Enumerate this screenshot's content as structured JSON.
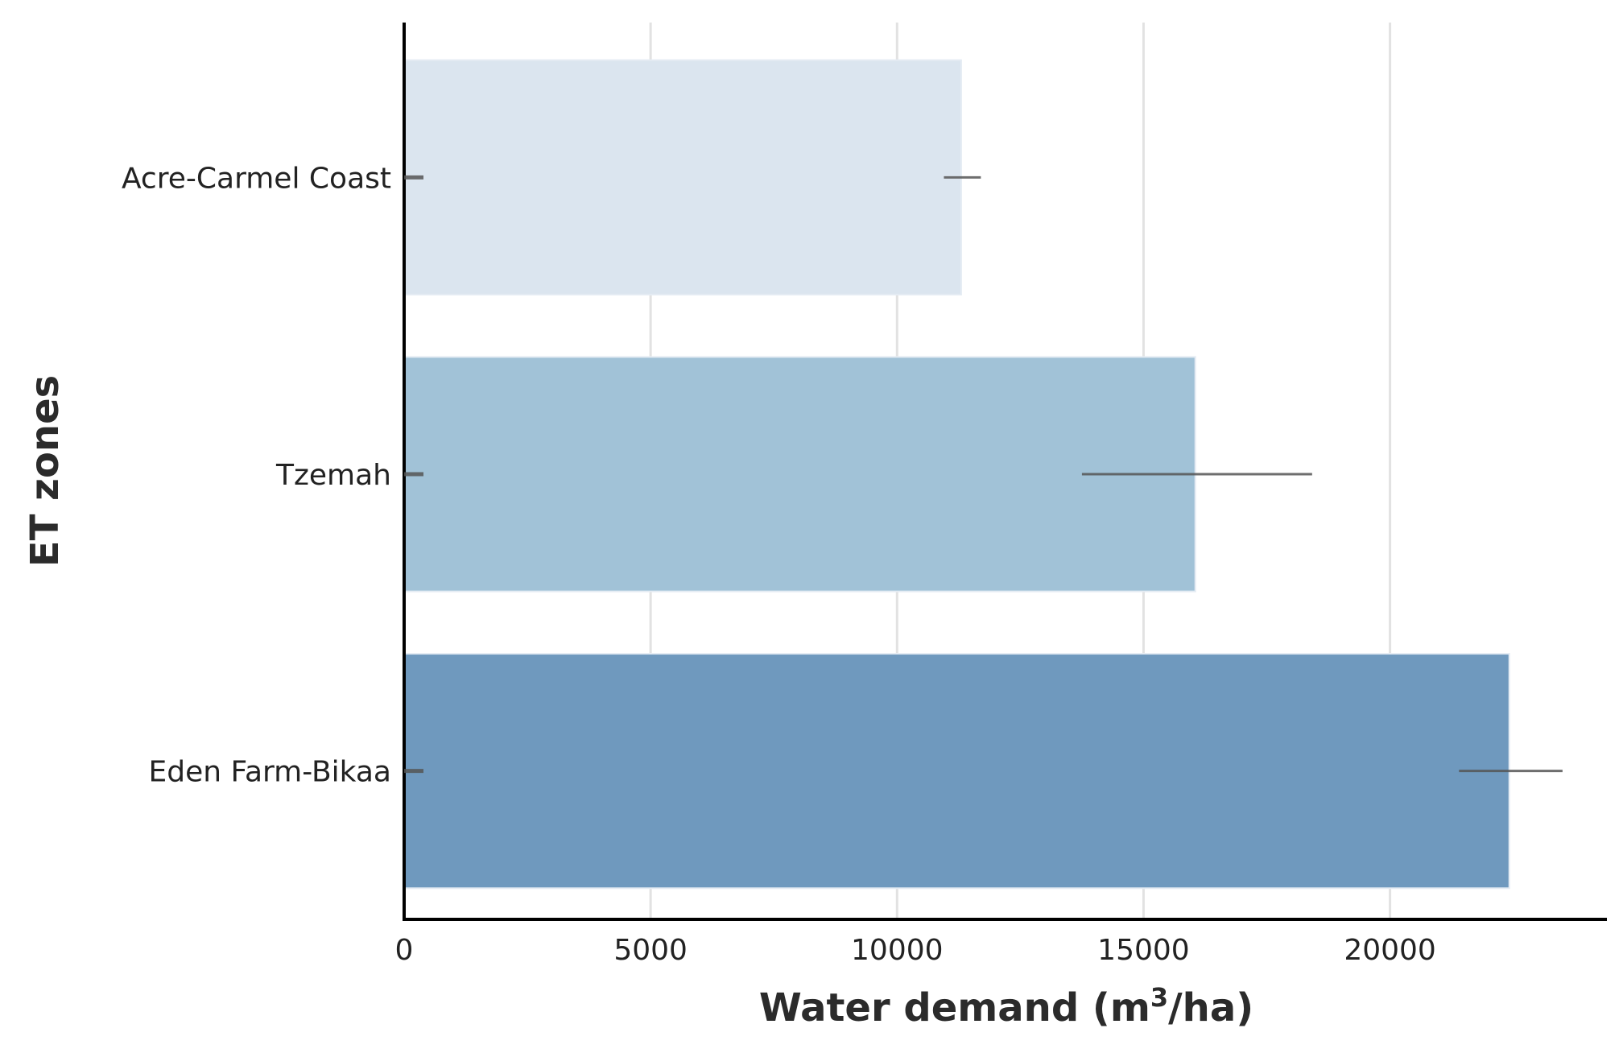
{
  "chart_data": {
    "type": "bar",
    "orientation": "horizontal",
    "categories": [
      "Acre-Carmel Coast",
      "Tzemah",
      "Eden Farm-Bikaa"
    ],
    "values": [
      11300,
      16050,
      22420
    ],
    "error_low": [
      10950,
      13750,
      21400
    ],
    "error_high": [
      11700,
      18420,
      23500
    ],
    "xlabel_text": "Water demand (m",
    "xlabel_sup": "3",
    "xlabel_suffix": "/ha)",
    "ylabel": "ET zones",
    "xlim": [
      0,
      24400
    ],
    "xticks": [
      0,
      5000,
      10000,
      15000,
      20000
    ],
    "xtick_labels": [
      "0",
      "5000",
      "10000",
      "15000",
      "20000"
    ],
    "grid": "vertical",
    "colors": [
      "#dbe5ef",
      "#a1c2d7",
      "#6f99be"
    ],
    "error_color": "#555555"
  }
}
